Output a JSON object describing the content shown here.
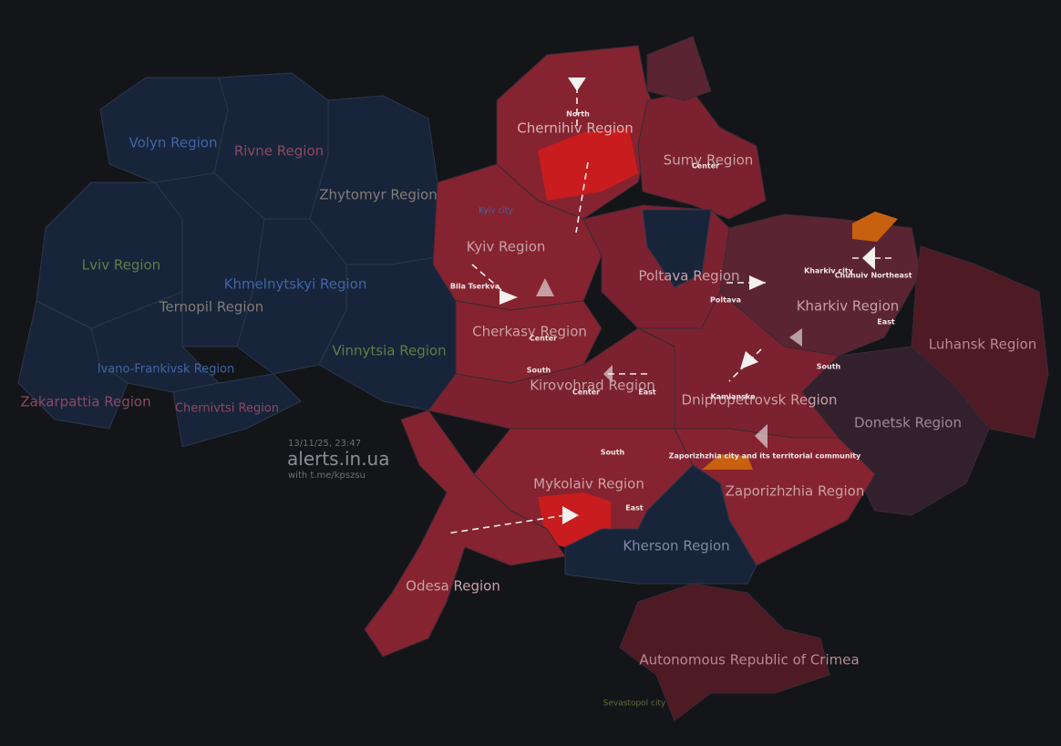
{
  "timestamp": "13/11/25, 23:47",
  "brand": "alerts.in.ua",
  "source": "with t.me/kpszsu",
  "regions": [
    "Volyn Region",
    "Rivne Region",
    "Zhytomyr Region",
    "Kyiv city",
    "Kyiv Region",
    "Chernihiv Region",
    "Sumy Region",
    "Lviv Region",
    "Khmelnytskyi Region",
    "Ternopil Region",
    "Vinnytsia Region",
    "Ivano-Frankivsk Region",
    "Zakarpattia Region",
    "Chernivtsi Region",
    "Cherkasy Region",
    "Poltava Region",
    "Kharkiv Region",
    "Luhansk Region",
    "Donetsk Region",
    "Dnipropetrovsk Region",
    "Kirovohrad Region",
    "Mykolaiv Region",
    "Zaporizhzhia Region",
    "Kherson Region",
    "Odesa Region",
    "Autonomous Republic of Crimea",
    "Sevastopol city"
  ],
  "places": [
    "North",
    "Center",
    "Bila Tserkva",
    "Center",
    "South",
    "Center",
    "East",
    "South",
    "Poltava",
    "Kharkiv city",
    "Chuhuiv",
    "Northeast",
    "East",
    "South",
    "Kamianske",
    "Zaporizhzhia city and its territorial community",
    "East"
  ]
}
